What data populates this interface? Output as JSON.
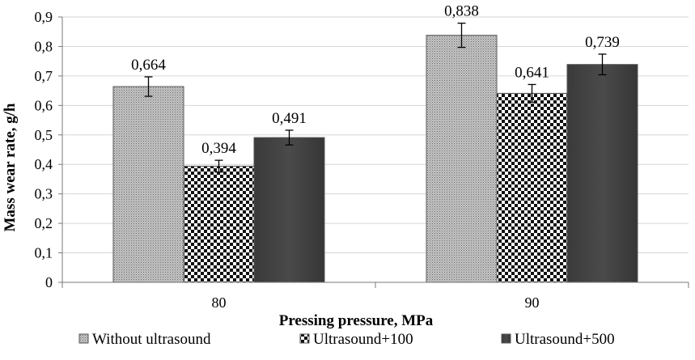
{
  "chart_data": {
    "type": "bar",
    "title": "",
    "xlabel": "Pressing pressure, MPa",
    "ylabel": "Mass wear rate, g/h",
    "categories": [
      "80",
      "90"
    ],
    "ylim": [
      0,
      0.9
    ],
    "yticks": [
      0,
      0.1,
      0.2,
      0.3,
      0.4,
      0.5,
      0.6,
      0.7,
      0.8,
      0.9
    ],
    "ytick_labels": [
      "0",
      "0,1",
      "0,2",
      "0,3",
      "0,4",
      "0,5",
      "0,6",
      "0,7",
      "0,8",
      "0,9"
    ],
    "grid": true,
    "legend_position": "bottom",
    "series": [
      {
        "name": "Without ultrasound",
        "pattern": "fine-dots",
        "values": [
          0.664,
          0.838
        ],
        "labels": [
          "0,664",
          "0,838"
        ],
        "errors": [
          0.033,
          0.041
        ]
      },
      {
        "name": "Ultrasound+100",
        "pattern": "checker",
        "values": [
          0.394,
          0.641
        ],
        "labels": [
          "0,394",
          "0,641"
        ],
        "errors": [
          0.02,
          0.03
        ]
      },
      {
        "name": "Ultrasound+500",
        "pattern": "dark",
        "values": [
          0.491,
          0.739
        ],
        "labels": [
          "0,491",
          "0,739"
        ],
        "errors": [
          0.025,
          0.035
        ]
      }
    ]
  }
}
